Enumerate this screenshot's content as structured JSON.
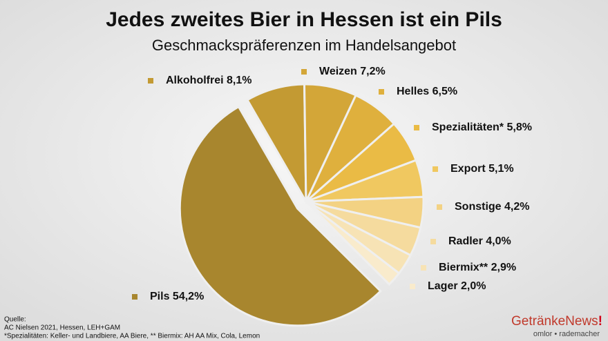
{
  "chart_data": {
    "type": "pie",
    "title": "Jedes zweites Bier in Hessen ist ein Pils",
    "subtitle": "Geschmackspräferenzen im Handelsangebot",
    "categories": [
      "Alkoholfrei",
      "Weizen",
      "Helles",
      "Spezialitäten*",
      "Export",
      "Sonstige",
      "Radler",
      "Biermix**",
      "Lager",
      "Pils"
    ],
    "values": [
      8.1,
      7.2,
      6.5,
      5.8,
      5.1,
      4.2,
      4.0,
      2.9,
      2.0,
      54.2
    ],
    "value_labels": [
      "8,1%",
      "7,2%",
      "6,5%",
      "5,8%",
      "5,1%",
      "4,2%",
      "4,0%",
      "2,9%",
      "2,0%",
      "54,2%"
    ],
    "colors": [
      "#c39a33",
      "#d3a638",
      "#dfb03d",
      "#eabb45",
      "#f0c860",
      "#f3d283",
      "#f5db9e",
      "#f7e3b5",
      "#f9ebcc",
      "#a8862e"
    ]
  },
  "footer": {
    "source_label": "Quelle:",
    "notes": [
      "AC Nielsen 2021, Hessen, LEH+GAM",
      "*Spezialitäten: Keller- und Landbiere, AA Biere, ** Biermix: AH AA Mix, Cola, Lemon"
    ],
    "brand": "GetränkeNews",
    "brand_mark": "!",
    "tagline": "omlor • rademacher"
  }
}
